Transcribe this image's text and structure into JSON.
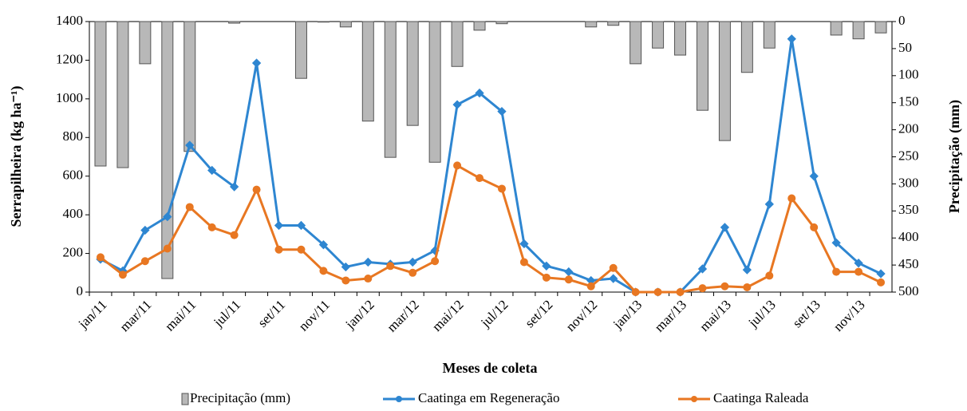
{
  "chart_data": {
    "type": "combo",
    "x_label": "Meses de coleta",
    "y_label": "Serrapilheira (kg ha⁻¹)",
    "y2_label": "Precipitação (mm)",
    "categories": [
      "jan/11",
      null,
      "mar/11",
      null,
      "mai/11",
      null,
      "jul/11",
      null,
      "set/11",
      null,
      "nov/11",
      null,
      "jan/12",
      null,
      "mar/12",
      null,
      "mai/12",
      null,
      "jul/12",
      null,
      "set/12",
      null,
      "nov/12",
      null,
      "jan/13",
      null,
      "mar/13",
      null,
      "mai/13",
      null,
      "jul/13",
      null,
      "set/13",
      null,
      "nov/13",
      null
    ],
    "ylim": [
      0,
      1400
    ],
    "yticks": [
      0,
      200,
      400,
      600,
      800,
      1000,
      1200,
      1400
    ],
    "y2lim": [
      0,
      500
    ],
    "y2ticks": [
      0,
      50,
      100,
      150,
      200,
      250,
      300,
      350,
      400,
      450,
      500
    ],
    "y2_inverted": true,
    "series": [
      {
        "name": "Precipitação (mm)",
        "type": "bar",
        "axis": "y2",
        "color": "#b8b8b8",
        "values": [
          267,
          270,
          78,
          475,
          240,
          null,
          3,
          null,
          null,
          105,
          1,
          10,
          184,
          251,
          192,
          260,
          83,
          16,
          4,
          null,
          null,
          null,
          10,
          7,
          78,
          49,
          62,
          164,
          220,
          94,
          49,
          null,
          null,
          25,
          32,
          21
        ]
      },
      {
        "name": "Caatinga em Regeneração",
        "type": "line",
        "color": "#2e86d1",
        "values": [
          170,
          110,
          320,
          390,
          760,
          630,
          545,
          1185,
          345,
          345,
          245,
          130,
          155,
          145,
          155,
          215,
          970,
          1030,
          935,
          250,
          135,
          105,
          60,
          70,
          0,
          0,
          0,
          120,
          335,
          115,
          455,
          1310,
          600,
          255,
          150,
          95
        ]
      },
      {
        "name": "Caatinga Raleada",
        "type": "line",
        "color": "#e87722",
        "values": [
          180,
          90,
          160,
          225,
          440,
          335,
          295,
          530,
          220,
          220,
          110,
          60,
          70,
          135,
          100,
          160,
          655,
          590,
          535,
          155,
          75,
          65,
          30,
          125,
          0,
          0,
          0,
          20,
          30,
          25,
          85,
          485,
          335,
          105,
          105,
          50
        ]
      }
    ]
  }
}
